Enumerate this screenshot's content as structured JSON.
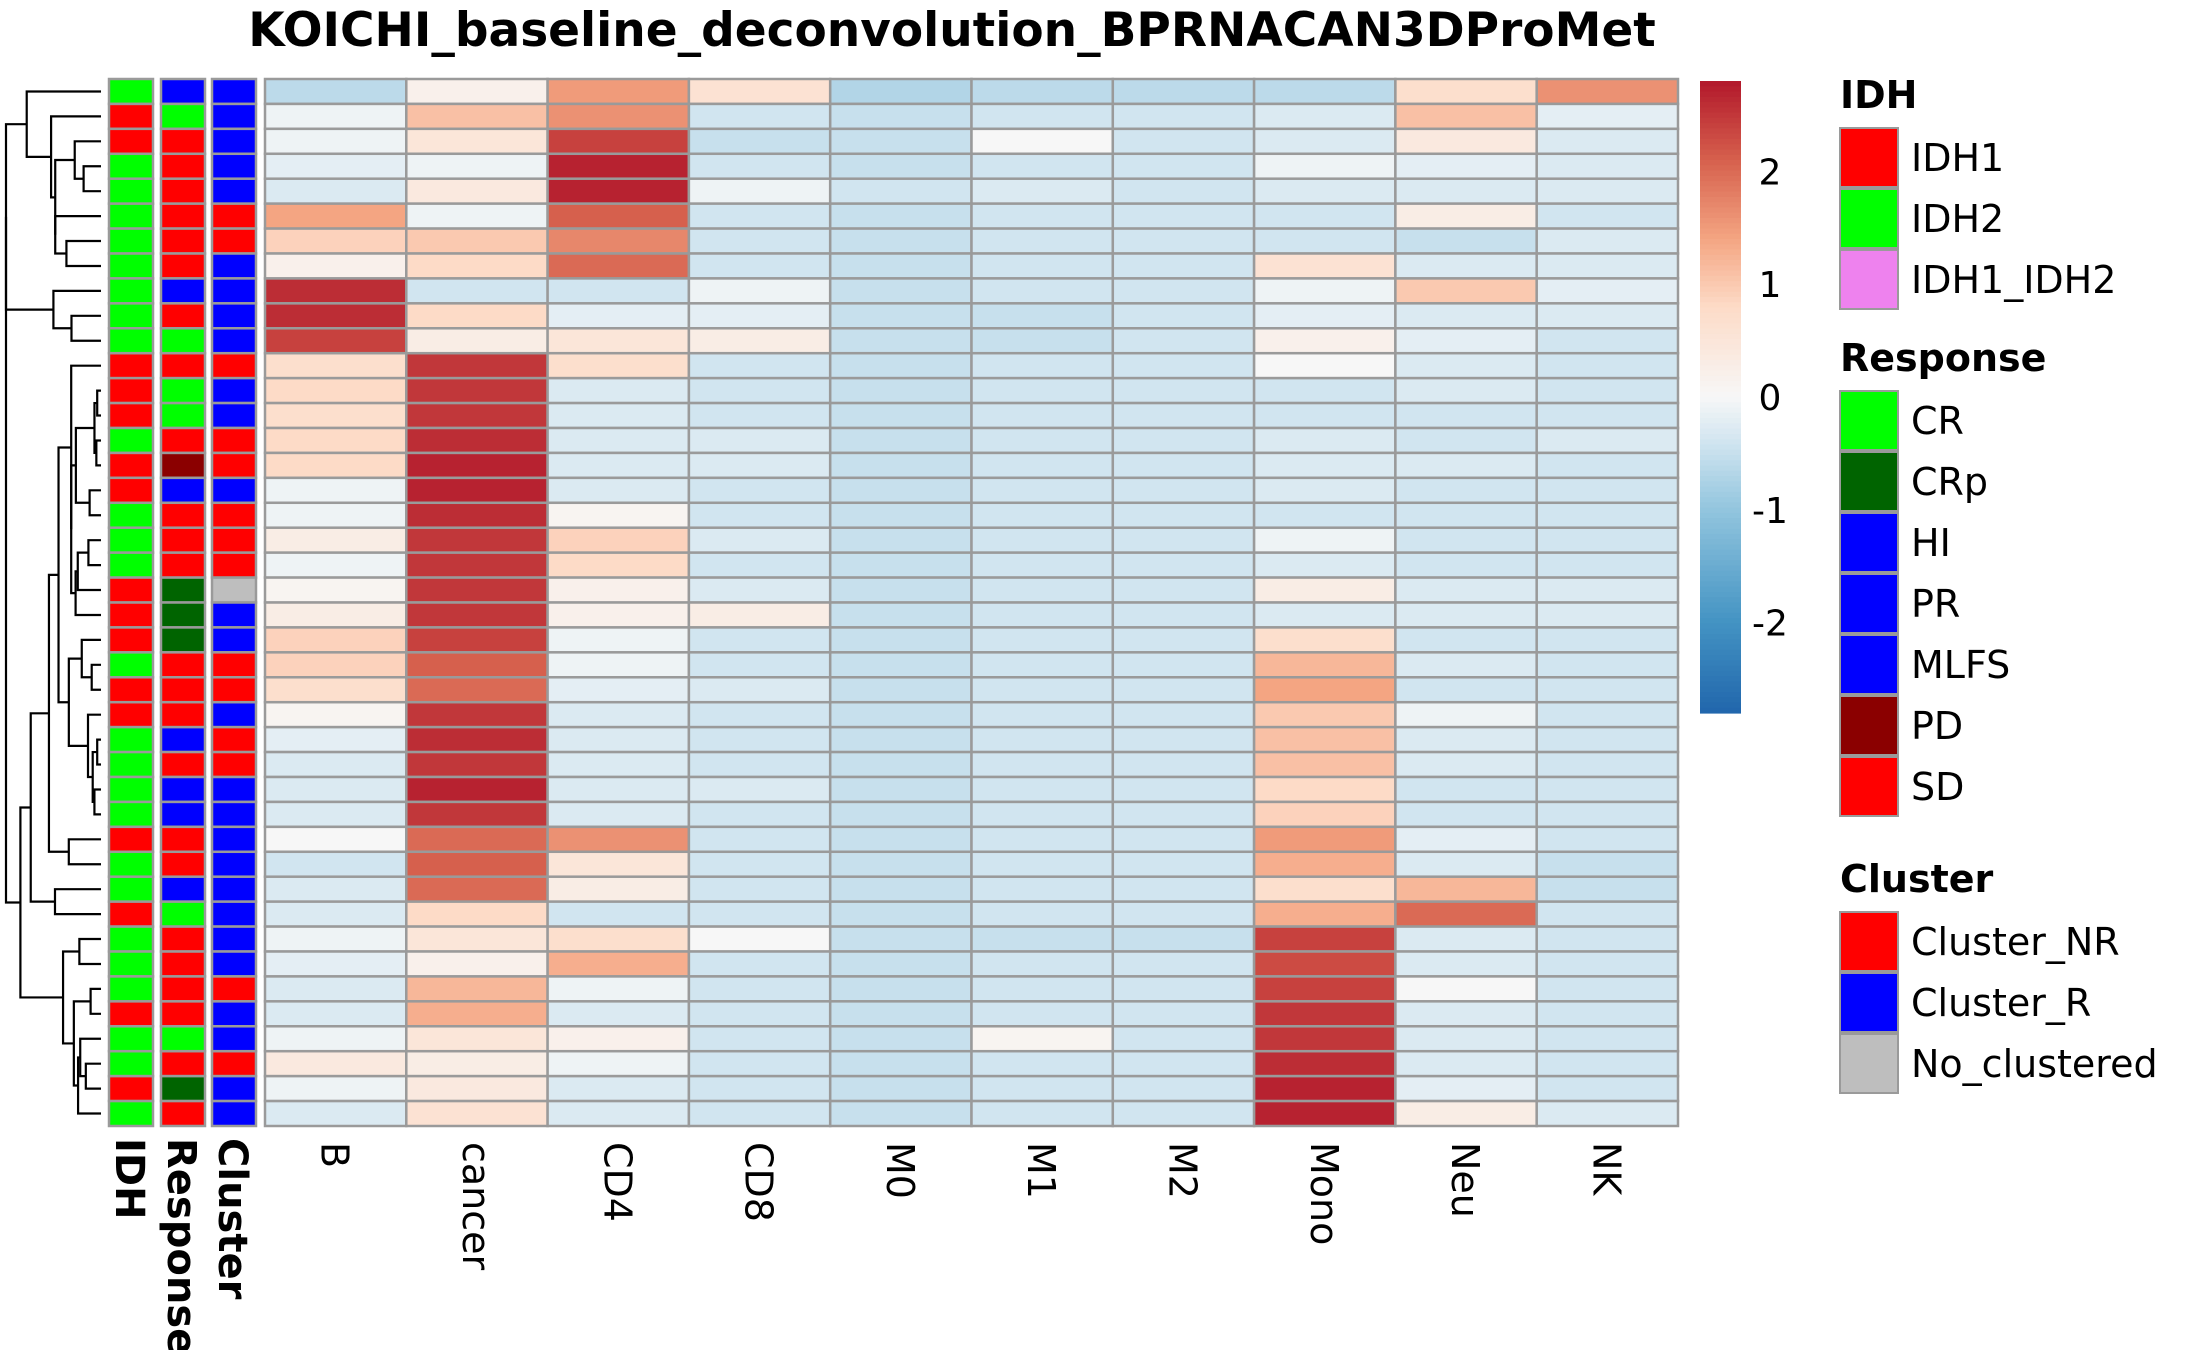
{
  "chart_data": {
    "type": "heatmap",
    "title": "KOICHI_baseline_deconvolution_BPRNACAN3DProMet",
    "columns": [
      "B",
      "cancer",
      "CD4",
      "CD8",
      "M0",
      "M1",
      "M2",
      "Mono",
      "Neu",
      "NK"
    ],
    "annotation_columns": [
      "IDH",
      "Response",
      "Cluster"
    ],
    "rows": [
      {
        "IDH": "IDH2",
        "Response": "HI",
        "Cluster": "Cluster_R",
        "values": [
          -0.6,
          0.2,
          1.5,
          0.6,
          -0.7,
          -0.6,
          -0.6,
          -0.6,
          0.7,
          1.6
        ]
      },
      {
        "IDH": "IDH1",
        "Response": "CR",
        "Cluster": "Cluster_R",
        "values": [
          -0.1,
          1.1,
          1.6,
          -0.4,
          -0.5,
          -0.4,
          -0.4,
          -0.3,
          1.1,
          -0.2
        ]
      },
      {
        "IDH": "IDH1",
        "Response": "SD",
        "Cluster": "Cluster_R",
        "values": [
          -0.1,
          0.5,
          2.4,
          -0.5,
          -0.5,
          0.0,
          -0.4,
          -0.3,
          0.4,
          -0.3
        ]
      },
      {
        "IDH": "IDH2",
        "Response": "SD",
        "Cluster": "Cluster_R",
        "values": [
          -0.2,
          -0.1,
          2.7,
          -0.4,
          -0.5,
          -0.4,
          -0.4,
          -0.1,
          -0.2,
          -0.3
        ]
      },
      {
        "IDH": "IDH2",
        "Response": "SD",
        "Cluster": "Cluster_R",
        "values": [
          -0.3,
          0.4,
          2.7,
          -0.1,
          -0.4,
          -0.3,
          -0.4,
          -0.3,
          -0.3,
          -0.3
        ]
      },
      {
        "IDH": "IDH2",
        "Response": "SD",
        "Cluster": "Cluster_NR",
        "values": [
          1.4,
          -0.1,
          2.1,
          -0.4,
          -0.5,
          -0.4,
          -0.4,
          -0.4,
          0.3,
          -0.4
        ]
      },
      {
        "IDH": "IDH2",
        "Response": "SD",
        "Cluster": "Cluster_NR",
        "values": [
          0.9,
          1.0,
          1.7,
          -0.4,
          -0.5,
          -0.4,
          -0.4,
          -0.4,
          -0.5,
          -0.3
        ]
      },
      {
        "IDH": "IDH2",
        "Response": "SD",
        "Cluster": "Cluster_R",
        "values": [
          0.2,
          0.8,
          2.0,
          -0.4,
          -0.5,
          -0.4,
          -0.4,
          0.6,
          -0.3,
          -0.3
        ]
      },
      {
        "IDH": "IDH2",
        "Response": "HI",
        "Cluster": "Cluster_R",
        "values": [
          2.6,
          -0.4,
          -0.4,
          -0.1,
          -0.5,
          -0.4,
          -0.4,
          -0.1,
          1.0,
          -0.2
        ]
      },
      {
        "IDH": "IDH2",
        "Response": "SD",
        "Cluster": "Cluster_R",
        "values": [
          2.6,
          0.8,
          -0.2,
          -0.2,
          -0.5,
          -0.5,
          -0.4,
          -0.2,
          -0.3,
          -0.3
        ]
      },
      {
        "IDH": "IDH2",
        "Response": "CR",
        "Cluster": "Cluster_R",
        "values": [
          2.4,
          0.3,
          0.5,
          0.3,
          -0.5,
          -0.5,
          -0.4,
          0.2,
          -0.2,
          -0.4
        ]
      },
      {
        "IDH": "IDH1",
        "Response": "SD",
        "Cluster": "Cluster_NR",
        "values": [
          0.7,
          2.5,
          0.7,
          -0.4,
          -0.5,
          -0.4,
          -0.4,
          0.0,
          -0.3,
          -0.4
        ]
      },
      {
        "IDH": "IDH1",
        "Response": "CR",
        "Cluster": "Cluster_R",
        "values": [
          0.8,
          2.5,
          -0.3,
          -0.4,
          -0.5,
          -0.4,
          -0.4,
          -0.4,
          -0.3,
          -0.4
        ]
      },
      {
        "IDH": "IDH1",
        "Response": "CR",
        "Cluster": "Cluster_R",
        "values": [
          0.7,
          2.5,
          -0.3,
          -0.4,
          -0.5,
          -0.4,
          -0.4,
          -0.4,
          -0.4,
          -0.4
        ]
      },
      {
        "IDH": "IDH2",
        "Response": "SD",
        "Cluster": "Cluster_NR",
        "values": [
          0.8,
          2.6,
          -0.3,
          -0.3,
          -0.5,
          -0.4,
          -0.4,
          -0.3,
          -0.4,
          -0.3
        ]
      },
      {
        "IDH": "IDH1",
        "Response": "PD",
        "Cluster": "Cluster_NR",
        "values": [
          0.8,
          2.7,
          -0.3,
          -0.3,
          -0.5,
          -0.4,
          -0.4,
          -0.3,
          -0.3,
          -0.4
        ]
      },
      {
        "IDH": "IDH1",
        "Response": "HI",
        "Cluster": "Cluster_R",
        "values": [
          -0.1,
          2.7,
          -0.3,
          -0.4,
          -0.5,
          -0.4,
          -0.4,
          -0.3,
          -0.4,
          -0.4
        ]
      },
      {
        "IDH": "IDH2",
        "Response": "SD",
        "Cluster": "Cluster_NR",
        "values": [
          -0.1,
          2.6,
          0.1,
          -0.4,
          -0.5,
          -0.4,
          -0.4,
          -0.4,
          -0.4,
          -0.4
        ]
      },
      {
        "IDH": "IDH2",
        "Response": "SD",
        "Cluster": "Cluster_NR",
        "values": [
          0.3,
          2.5,
          0.9,
          -0.3,
          -0.5,
          -0.4,
          -0.4,
          -0.1,
          -0.4,
          -0.4
        ]
      },
      {
        "IDH": "IDH2",
        "Response": "SD",
        "Cluster": "Cluster_NR",
        "values": [
          -0.1,
          2.5,
          0.8,
          -0.4,
          -0.5,
          -0.4,
          -0.4,
          -0.3,
          -0.4,
          -0.4
        ]
      },
      {
        "IDH": "IDH1",
        "Response": "CRp",
        "Cluster": "No_clustered",
        "values": [
          0.1,
          2.5,
          0.2,
          -0.3,
          -0.5,
          -0.4,
          -0.4,
          0.3,
          -0.3,
          -0.3
        ]
      },
      {
        "IDH": "IDH1",
        "Response": "CRp",
        "Cluster": "Cluster_R",
        "values": [
          0.3,
          2.5,
          0.2,
          0.3,
          -0.5,
          -0.4,
          -0.4,
          -0.3,
          -0.3,
          -0.3
        ]
      },
      {
        "IDH": "IDH1",
        "Response": "CRp",
        "Cluster": "Cluster_R",
        "values": [
          0.9,
          2.4,
          -0.1,
          -0.4,
          -0.5,
          -0.4,
          -0.4,
          0.7,
          -0.4,
          -0.4
        ]
      },
      {
        "IDH": "IDH2",
        "Response": "SD",
        "Cluster": "Cluster_NR",
        "values": [
          0.9,
          2.1,
          -0.1,
          -0.4,
          -0.5,
          -0.4,
          -0.4,
          1.2,
          -0.3,
          -0.4
        ]
      },
      {
        "IDH": "IDH1",
        "Response": "SD",
        "Cluster": "Cluster_NR",
        "values": [
          0.7,
          2.0,
          -0.2,
          -0.3,
          -0.5,
          -0.4,
          -0.4,
          1.4,
          -0.4,
          -0.4
        ]
      },
      {
        "IDH": "IDH1",
        "Response": "SD",
        "Cluster": "Cluster_R",
        "values": [
          0.1,
          2.5,
          -0.3,
          -0.4,
          -0.5,
          -0.4,
          -0.4,
          1.0,
          -0.1,
          -0.4
        ]
      },
      {
        "IDH": "IDH2",
        "Response": "HI",
        "Cluster": "Cluster_NR",
        "values": [
          -0.2,
          2.6,
          -0.3,
          -0.4,
          -0.5,
          -0.4,
          -0.4,
          1.1,
          -0.3,
          -0.4
        ]
      },
      {
        "IDH": "IDH2",
        "Response": "SD",
        "Cluster": "Cluster_NR",
        "values": [
          -0.3,
          2.5,
          -0.3,
          -0.4,
          -0.5,
          -0.4,
          -0.4,
          1.1,
          -0.3,
          -0.4
        ]
      },
      {
        "IDH": "IDH2",
        "Response": "HI",
        "Cluster": "Cluster_R",
        "values": [
          -0.3,
          2.7,
          -0.3,
          -0.3,
          -0.5,
          -0.4,
          -0.4,
          0.8,
          -0.4,
          -0.4
        ]
      },
      {
        "IDH": "IDH2",
        "Response": "HI",
        "Cluster": "Cluster_R",
        "values": [
          -0.3,
          2.5,
          -0.3,
          -0.4,
          -0.5,
          -0.4,
          -0.4,
          0.9,
          -0.4,
          -0.4
        ]
      },
      {
        "IDH": "IDH1",
        "Response": "SD",
        "Cluster": "Cluster_R",
        "values": [
          0.0,
          2.0,
          1.6,
          -0.4,
          -0.5,
          -0.4,
          -0.4,
          1.5,
          -0.2,
          -0.4
        ]
      },
      {
        "IDH": "IDH2",
        "Response": "SD",
        "Cluster": "Cluster_R",
        "values": [
          -0.4,
          2.1,
          0.5,
          -0.4,
          -0.5,
          -0.4,
          -0.4,
          1.3,
          -0.3,
          -0.5
        ]
      },
      {
        "IDH": "IDH2",
        "Response": "HI",
        "Cluster": "Cluster_R",
        "values": [
          -0.3,
          2.0,
          0.3,
          -0.4,
          -0.5,
          -0.4,
          -0.4,
          0.7,
          1.2,
          -0.5
        ]
      },
      {
        "IDH": "IDH1",
        "Response": "CR",
        "Cluster": "Cluster_R",
        "values": [
          -0.3,
          0.8,
          -0.4,
          -0.4,
          -0.5,
          -0.4,
          -0.4,
          1.3,
          2.0,
          -0.4
        ]
      },
      {
        "IDH": "IDH2",
        "Response": "SD",
        "Cluster": "Cluster_R",
        "values": [
          -0.1,
          0.5,
          0.7,
          0.0,
          -0.5,
          -0.5,
          -0.5,
          2.4,
          -0.3,
          -0.4
        ]
      },
      {
        "IDH": "IDH2",
        "Response": "SD",
        "Cluster": "Cluster_R",
        "values": [
          -0.2,
          0.2,
          1.3,
          -0.4,
          -0.5,
          -0.4,
          -0.4,
          2.3,
          -0.3,
          -0.4
        ]
      },
      {
        "IDH": "IDH2",
        "Response": "SD",
        "Cluster": "Cluster_NR",
        "values": [
          -0.3,
          1.2,
          -0.1,
          -0.4,
          -0.5,
          -0.4,
          -0.4,
          2.4,
          0.0,
          -0.4
        ]
      },
      {
        "IDH": "IDH1",
        "Response": "SD",
        "Cluster": "Cluster_R",
        "values": [
          -0.3,
          1.3,
          -0.3,
          -0.4,
          -0.5,
          -0.4,
          -0.4,
          2.5,
          -0.3,
          -0.4
        ]
      },
      {
        "IDH": "IDH2",
        "Response": "CR",
        "Cluster": "Cluster_R",
        "values": [
          -0.1,
          0.5,
          0.2,
          -0.4,
          -0.5,
          0.1,
          -0.4,
          2.5,
          -0.3,
          -0.4
        ]
      },
      {
        "IDH": "IDH2",
        "Response": "SD",
        "Cluster": "Cluster_NR",
        "values": [
          0.4,
          0.3,
          -0.1,
          -0.4,
          -0.5,
          -0.4,
          -0.4,
          2.6,
          -0.3,
          -0.4
        ]
      },
      {
        "IDH": "IDH1",
        "Response": "CRp",
        "Cluster": "Cluster_R",
        "values": [
          -0.1,
          0.4,
          -0.3,
          -0.4,
          -0.5,
          -0.4,
          -0.4,
          2.7,
          -0.2,
          -0.4
        ]
      },
      {
        "IDH": "IDH2",
        "Response": "SD",
        "Cluster": "Cluster_R",
        "values": [
          -0.3,
          0.6,
          -0.3,
          -0.4,
          -0.5,
          -0.4,
          -0.4,
          2.7,
          0.3,
          -0.3
        ]
      }
    ],
    "color_scale": {
      "stops": [
        {
          "v": -2.8,
          "color": "#2166ac"
        },
        {
          "v": -2.0,
          "color": "#4393c3"
        },
        {
          "v": -1.0,
          "color": "#92c5de"
        },
        {
          "v": -0.4,
          "color": "#d1e5f0"
        },
        {
          "v": 0.0,
          "color": "#f7f7f7"
        },
        {
          "v": 0.8,
          "color": "#fddbc7"
        },
        {
          "v": 1.4,
          "color": "#f4a582"
        },
        {
          "v": 2.1,
          "color": "#d6604d"
        },
        {
          "v": 2.8,
          "color": "#b2182b"
        }
      ],
      "ticks": [
        2,
        1,
        0,
        -1,
        -2
      ],
      "range": [
        -2.8,
        2.8
      ]
    },
    "legend": {
      "placement": "right",
      "groups": [
        {
          "title": "IDH",
          "items": [
            {
              "label": "IDH1",
              "color": "#ff0000"
            },
            {
              "label": "IDH2",
              "color": "#00ff00"
            },
            {
              "label": "IDH1_IDH2",
              "color": "#ee82ee"
            }
          ]
        },
        {
          "title": "Response",
          "items": [
            {
              "label": "CR",
              "color": "#00ff00"
            },
            {
              "label": "CRp",
              "color": "#006400"
            },
            {
              "label": "HI",
              "color": "#0000ff"
            },
            {
              "label": "PR",
              "color": "#0000ff"
            },
            {
              "label": "MLFS",
              "color": "#0000ff"
            },
            {
              "label": "PD",
              "color": "#8b0000"
            },
            {
              "label": "SD",
              "color": "#ff0000"
            }
          ]
        },
        {
          "title": "Cluster",
          "items": [
            {
              "label": "Cluster_NR",
              "color": "#ff0000"
            },
            {
              "label": "Cluster_R",
              "color": "#0000ff"
            },
            {
              "label": "No_clustered",
              "color": "#bebebe"
            }
          ]
        }
      ]
    }
  }
}
